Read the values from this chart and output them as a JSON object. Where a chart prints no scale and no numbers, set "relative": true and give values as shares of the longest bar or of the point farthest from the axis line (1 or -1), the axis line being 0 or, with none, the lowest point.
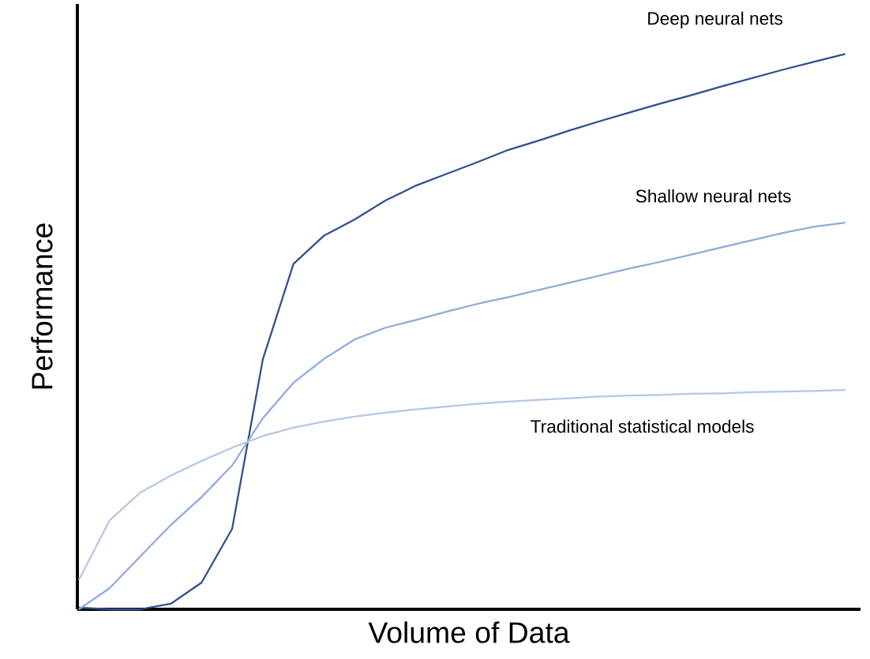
{
  "chart_data": {
    "type": "line",
    "relative": true,
    "xlabel": "Volume of Data",
    "ylabel": "Performance",
    "categories": [
      null,
      null,
      null,
      null,
      null,
      null,
      null,
      null,
      null,
      null,
      null,
      null,
      null,
      null,
      null,
      null,
      null,
      null,
      null,
      null,
      null,
      null,
      null,
      null,
      null,
      null
    ],
    "series": [
      {
        "name": "Deep neural nets",
        "color": "#2f4f8f",
        "values": [
          0.003,
          0,
          0,
          0.01,
          0.048,
          0.145,
          0.45,
          0.622,
          0.673,
          0.702,
          0.736,
          0.763,
          0.784,
          0.805,
          0.827,
          0.844,
          0.862,
          0.879,
          0.895,
          0.911,
          0.926,
          0.942,
          0.957,
          0.972,
          0.986,
          1
        ]
      },
      {
        "name": "Shallow neural nets",
        "color": "#8faadc",
        "values": [
          0,
          0.038,
          0.095,
          0.152,
          0.202,
          0.259,
          0.344,
          0.408,
          0.451,
          0.486,
          0.507,
          0.521,
          0.536,
          0.55,
          0.562,
          0.575,
          0.588,
          0.601,
          0.614,
          0.626,
          0.639,
          0.652,
          0.665,
          0.678,
          0.689,
          0.696
        ]
      },
      {
        "name": "Traditional statistical models",
        "color": "#b4c7e7",
        "values": [
          0.053,
          0.16,
          0.21,
          0.241,
          0.267,
          0.291,
          0.312,
          0.327,
          0.338,
          0.347,
          0.354,
          0.36,
          0.365,
          0.37,
          0.374,
          0.377,
          0.38,
          0.383,
          0.385,
          0.386,
          0.388,
          0.389,
          0.391,
          0.392,
          0.393,
          0.395
        ]
      }
    ]
  }
}
